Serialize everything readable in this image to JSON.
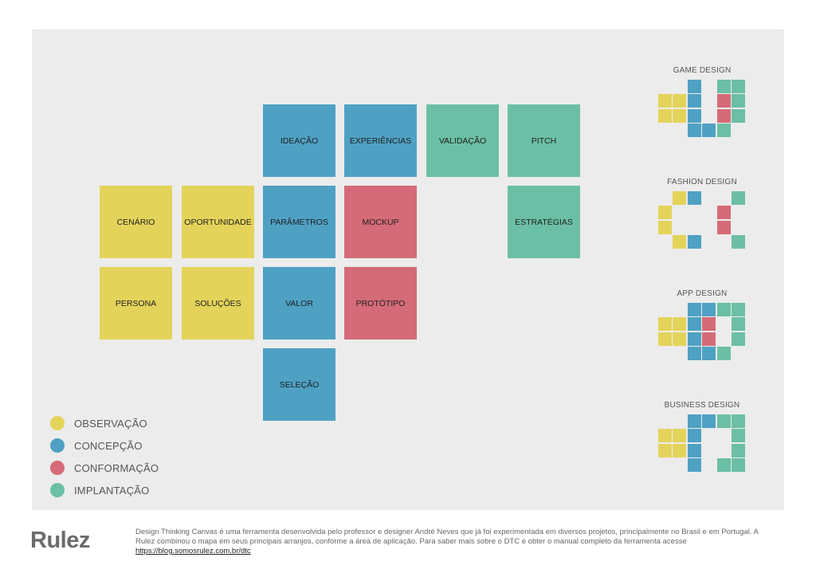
{
  "colors": {
    "observacao": "#e4d35a",
    "concepcao": "#4fa1c4",
    "conformacao": "#d56b78",
    "implantacao": "#6bbfa5",
    "canvas_bg": "#ececec"
  },
  "cards": [
    {
      "id": "ideacao",
      "label": "IDEAÇÃO",
      "phase": "concepcao"
    },
    {
      "id": "experiencias",
      "label": "EXPERIÊNCIAS",
      "phase": "concepcao"
    },
    {
      "id": "validacao",
      "label": "VALIDAÇÃO",
      "phase": "implantacao"
    },
    {
      "id": "pitch",
      "label": "PITCH",
      "phase": "implantacao"
    },
    {
      "id": "cenario",
      "label": "CENÁRIO",
      "phase": "observacao"
    },
    {
      "id": "oportunidade",
      "label": "OPORTUNIDADE",
      "phase": "observacao"
    },
    {
      "id": "parametros",
      "label": "PARÂMETROS",
      "phase": "concepcao"
    },
    {
      "id": "mockup",
      "label": "MOCKUP",
      "phase": "conformacao"
    },
    {
      "id": "estrategias",
      "label": "ESTRATÉGIAS",
      "phase": "implantacao"
    },
    {
      "id": "persona",
      "label": "PERSONA",
      "phase": "observacao"
    },
    {
      "id": "solucoes",
      "label": "SOLUÇÕES",
      "phase": "observacao"
    },
    {
      "id": "valor",
      "label": "VALOR",
      "phase": "concepcao"
    },
    {
      "id": "prototipo",
      "label": "PROTÓTIPO",
      "phase": "conformacao"
    },
    {
      "id": "selecao",
      "label": "SELEÇÃO",
      "phase": "concepcao"
    }
  ],
  "legend": [
    {
      "phase": "observacao",
      "label": "OBSERVAÇÃO"
    },
    {
      "phase": "concepcao",
      "label": "CONCEPÇÃO"
    },
    {
      "phase": "conformacao",
      "label": "CONFORMAÇÃO"
    },
    {
      "phase": "implantacao",
      "label": "IMPLANTAÇÃO"
    }
  ],
  "arrangements": [
    {
      "title": "GAME DESIGN",
      "rows": [
        "..B.GG",
        "YYB.RG",
        "YYB.RG",
        "..BBG."
      ]
    },
    {
      "title": "FASHION DESIGN",
      "rows": [
        ".YB..G",
        "Y...R.",
        "Y...R.",
        ".YB..G"
      ]
    },
    {
      "title": "APP DESIGN",
      "rows": [
        "..BBGG",
        "YYBR.G",
        "YYBR.G",
        "..BBG."
      ]
    },
    {
      "title": "BUSINESS DESIGN",
      "rows": [
        "..BBGG",
        "YYB..G",
        "YYB..G",
        "..B.GG"
      ]
    }
  ],
  "footer": {
    "logo": "Rulez",
    "text": "Design Thinking Canvas é uma ferramenta desenvolvida pelo professor e designer André Neves que já foi experimentada em diversos projetos, principalmente no Brasil e em Portugal. A Rulez combinou o mapa em seus principais arranjos, conforme a área de aplicação. Para saber mais sobre o DTC e obter o manual completo da ferramenta acesse",
    "link": "https://blog.somosrulez.com.br/dtc"
  }
}
